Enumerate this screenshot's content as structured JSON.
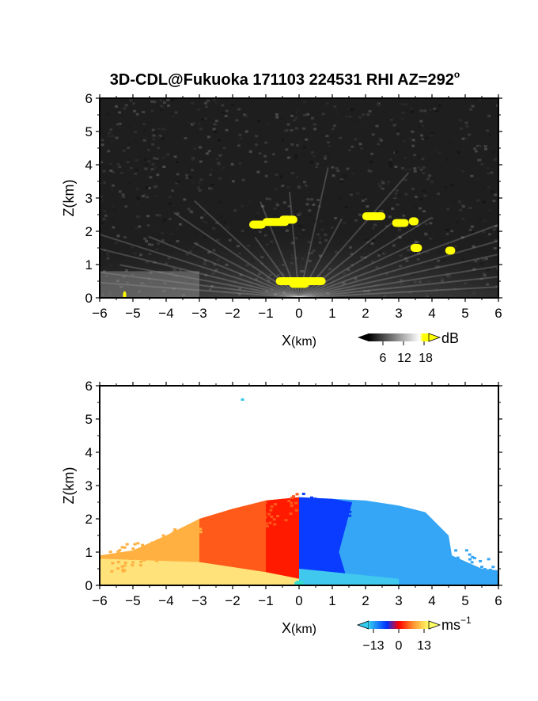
{
  "title_main": "3D-CDL@Fukuoka 171103 224531 RHI AZ=292",
  "title_degree": "o",
  "chart_data": [
    {
      "type": "heatmap",
      "name": "backscatter-intensity",
      "xlabel_main": "X",
      "xlabel_unit": "(km)",
      "ylabel": "Z(km)",
      "xlim": [
        -6,
        6
      ],
      "ylim": [
        0,
        6
      ],
      "xticks": [
        "-6",
        "-5",
        "-4",
        "-3",
        "-2",
        "-1",
        "0",
        "1",
        "2",
        "3",
        "4",
        "5",
        "6"
      ],
      "yticks": [
        "0",
        "1",
        "2",
        "3",
        "4",
        "5",
        "6"
      ],
      "colorbar": {
        "label": "dB",
        "ticks": [
          "6",
          "12",
          "18"
        ],
        "range": [
          0,
          20
        ],
        "colors": [
          "#000000",
          "#ffffff",
          "#ffff00"
        ]
      },
      "features": {
        "fan_origin_x": 0,
        "cloud_patches_z_km": [
          2.3,
          2.4,
          2.2,
          1.5,
          1.45
        ],
        "near_surface_bright_z_km": 0.5
      }
    },
    {
      "type": "heatmap",
      "name": "doppler-velocity",
      "xlabel_main": "X",
      "xlabel_unit": "(km)",
      "ylabel": "Z(km)",
      "xlim": [
        -6,
        6
      ],
      "ylim": [
        0,
        6
      ],
      "xticks": [
        "-6",
        "-5",
        "-4",
        "-3",
        "-2",
        "-1",
        "0",
        "1",
        "2",
        "3",
        "4",
        "5",
        "6"
      ],
      "yticks": [
        "0",
        "1",
        "2",
        "3",
        "4",
        "5",
        "6"
      ],
      "colorbar": {
        "label": "ms",
        "label_exp": "−1",
        "ticks": [
          "−13",
          "0",
          "13"
        ],
        "range": [
          -13,
          13
        ],
        "colors": [
          "#33ccee",
          "#0033ff",
          "#ff0000",
          "#ff9933",
          "#ffff66"
        ]
      },
      "features": {
        "positive_side": "x < 0",
        "negative_side": "x > 0",
        "max_echo_height_km": 2.6
      }
    }
  ]
}
